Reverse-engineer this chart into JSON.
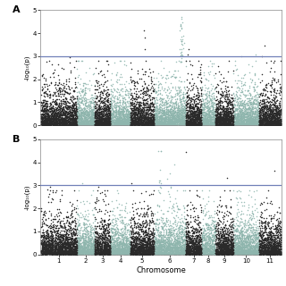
{
  "n_chromosomes": 11,
  "threshold": 3.0,
  "ylim": [
    0,
    5
  ],
  "yticks": [
    0,
    1,
    2,
    3,
    4,
    5
  ],
  "ylabel": "-log₁₀(p)",
  "xlabel": "Chromosome",
  "threshold_color": "#7080b8",
  "threshold_lw": 0.9,
  "panel_A_label": "A",
  "panel_B_label": "B",
  "background_color": "#ffffff",
  "colors_odd": "#2a2a2a",
  "colors_even": "#8eb5ad",
  "point_size": 1.2,
  "chr_sizes": [
    1800,
    900,
    800,
    1000,
    1200,
    1600,
    800,
    700,
    900,
    1300,
    1100
  ],
  "seed_A": 42,
  "seed_B": 99
}
